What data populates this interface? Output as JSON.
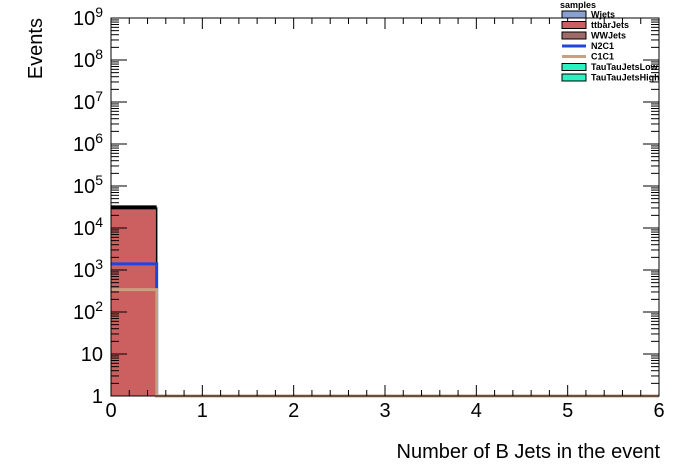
{
  "chart_data": {
    "type": "bar",
    "xlabel": "Number of B Jets in the event",
    "ylabel": "Events",
    "xlim": [
      0,
      6
    ],
    "ylim": [
      1,
      1000000000
    ],
    "log_y": true,
    "x_ticks": [
      "0",
      "1",
      "2",
      "3",
      "4",
      "5",
      "6"
    ],
    "y_ticks": [
      {
        "value": 1,
        "base": "1",
        "exp": ""
      },
      {
        "value": 10,
        "base": "10",
        "exp": ""
      },
      {
        "value": 100,
        "base": "10",
        "exp": "2"
      },
      {
        "value": 1000,
        "base": "10",
        "exp": "3"
      },
      {
        "value": 10000,
        "base": "10",
        "exp": "4"
      },
      {
        "value": 100000,
        "base": "10",
        "exp": "5"
      },
      {
        "value": 1000000,
        "base": "10",
        "exp": "6"
      },
      {
        "value": 10000000,
        "base": "10",
        "exp": "7"
      },
      {
        "value": 100000000,
        "base": "10",
        "exp": "8"
      },
      {
        "value": 1000000000,
        "base": "10",
        "exp": "9"
      }
    ],
    "legend": {
      "title": "samples",
      "position": "top-right",
      "entries": [
        {
          "name": "Wjets",
          "kind": "fill",
          "color": "#8aa0d0"
        },
        {
          "name": "ttbarJets",
          "kind": "fill",
          "color": "#cc6060"
        },
        {
          "name": "WWJets",
          "kind": "fill",
          "color": "#9e6a6a"
        },
        {
          "name": "N2C1",
          "kind": "line",
          "color": "#1f44e0"
        },
        {
          "name": "C1C1",
          "kind": "line",
          "color": "#c8a080"
        },
        {
          "name": "TauTauJetsLow",
          "kind": "fill",
          "color": "#2ef0c0"
        },
        {
          "name": "TauTauJetsHigh",
          "kind": "fill",
          "color": "#2ef0c0"
        }
      ]
    },
    "bin_edges": [
      0,
      0.5
    ],
    "stacked_series": [
      {
        "name": "Wjets",
        "color": "#8aa0d0",
        "values": [
          0
        ]
      },
      {
        "name": "ttbarJets",
        "color": "#cc6060",
        "values": [
          27000
        ]
      },
      {
        "name": "WWJets",
        "color": "#9e6a6a",
        "values": [
          4000
        ]
      }
    ],
    "line_series": [
      {
        "name": "N2C1",
        "color": "#1f44e0",
        "values": [
          1400
        ]
      },
      {
        "name": "C1C1",
        "color": "#c8a080",
        "values": [
          340
        ]
      }
    ],
    "stack_total": [
      31000
    ]
  }
}
